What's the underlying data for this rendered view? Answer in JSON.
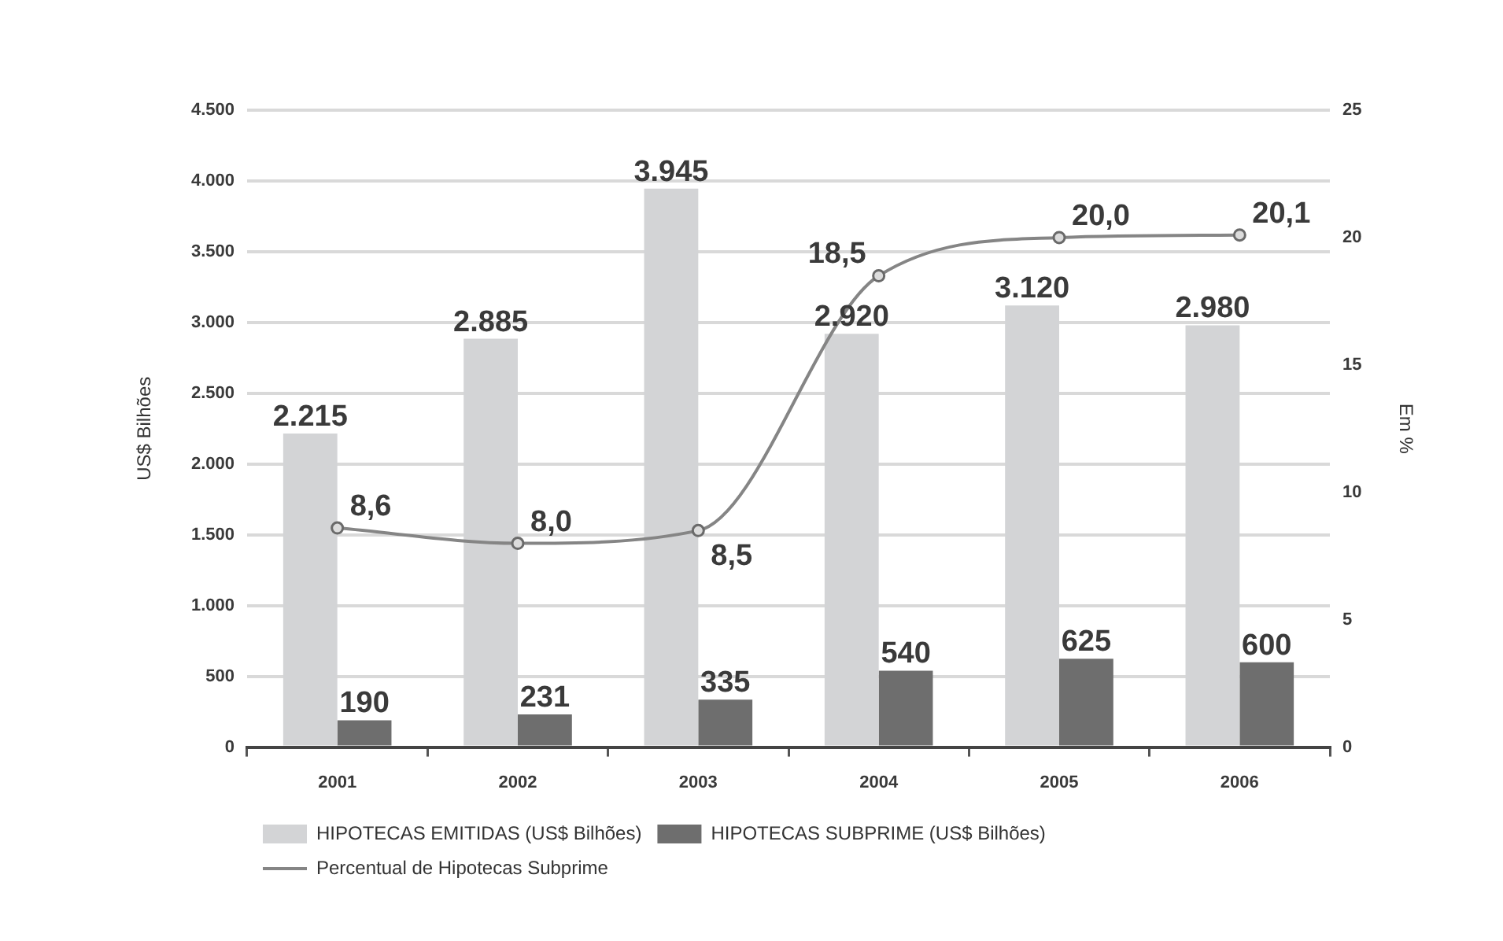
{
  "chart_data": {
    "type": "bar",
    "categories": [
      "2001",
      "2002",
      "2003",
      "2004",
      "2005",
      "2006"
    ],
    "ylabel": "US$ Bilhões",
    "y2label": "Em %",
    "ylim": [
      0,
      4500
    ],
    "yticks": [
      0,
      500,
      {
        "value": 1000,
        "label": "1.000"
      },
      {
        "value": 1500,
        "label": "1.500"
      },
      {
        "value": 2000,
        "label": "2.000"
      },
      {
        "value": 2500,
        "label": "2.500"
      },
      {
        "value": 3000,
        "label": "3.000"
      },
      {
        "value": 3500,
        "label": "3.500"
      },
      {
        "value": 4000,
        "label": "4.000"
      },
      {
        "value": 4500,
        "label": "4.500"
      }
    ],
    "y2lim": [
      0,
      25
    ],
    "y2ticks": [
      0,
      5,
      10,
      15,
      20,
      25
    ],
    "grid": "y",
    "legend": "bottom",
    "series": [
      {
        "name": "HIPOTECAS EMITIDAS (US$ Bilhões)",
        "color": "#d3d4d6",
        "values": [
          2215,
          2885,
          3945,
          2920,
          3120,
          2980
        ],
        "value_labels": [
          "2.215",
          "2.885",
          "3.945",
          "2.920",
          "3.120",
          "2.980"
        ]
      },
      {
        "name": "HIPOTECAS SUBPRIME (US$ Bilhões)",
        "color": "#6e6e6e",
        "values": [
          190,
          231,
          335,
          540,
          625,
          600
        ],
        "value_labels": [
          "190",
          "231",
          "335",
          "540",
          "625",
          "600"
        ]
      },
      {
        "name": "Percentual de Hipotecas Subprime",
        "type": "line",
        "axis": "y2",
        "color": "#858585",
        "marker": "circle",
        "line_style": "solid",
        "values": [
          8.6,
          8.0,
          8.5,
          18.5,
          20.0,
          20.1
        ],
        "value_labels": [
          "8,6",
          "8,0",
          "8,5",
          "18,5",
          "20,0",
          "20,1"
        ]
      }
    ]
  }
}
